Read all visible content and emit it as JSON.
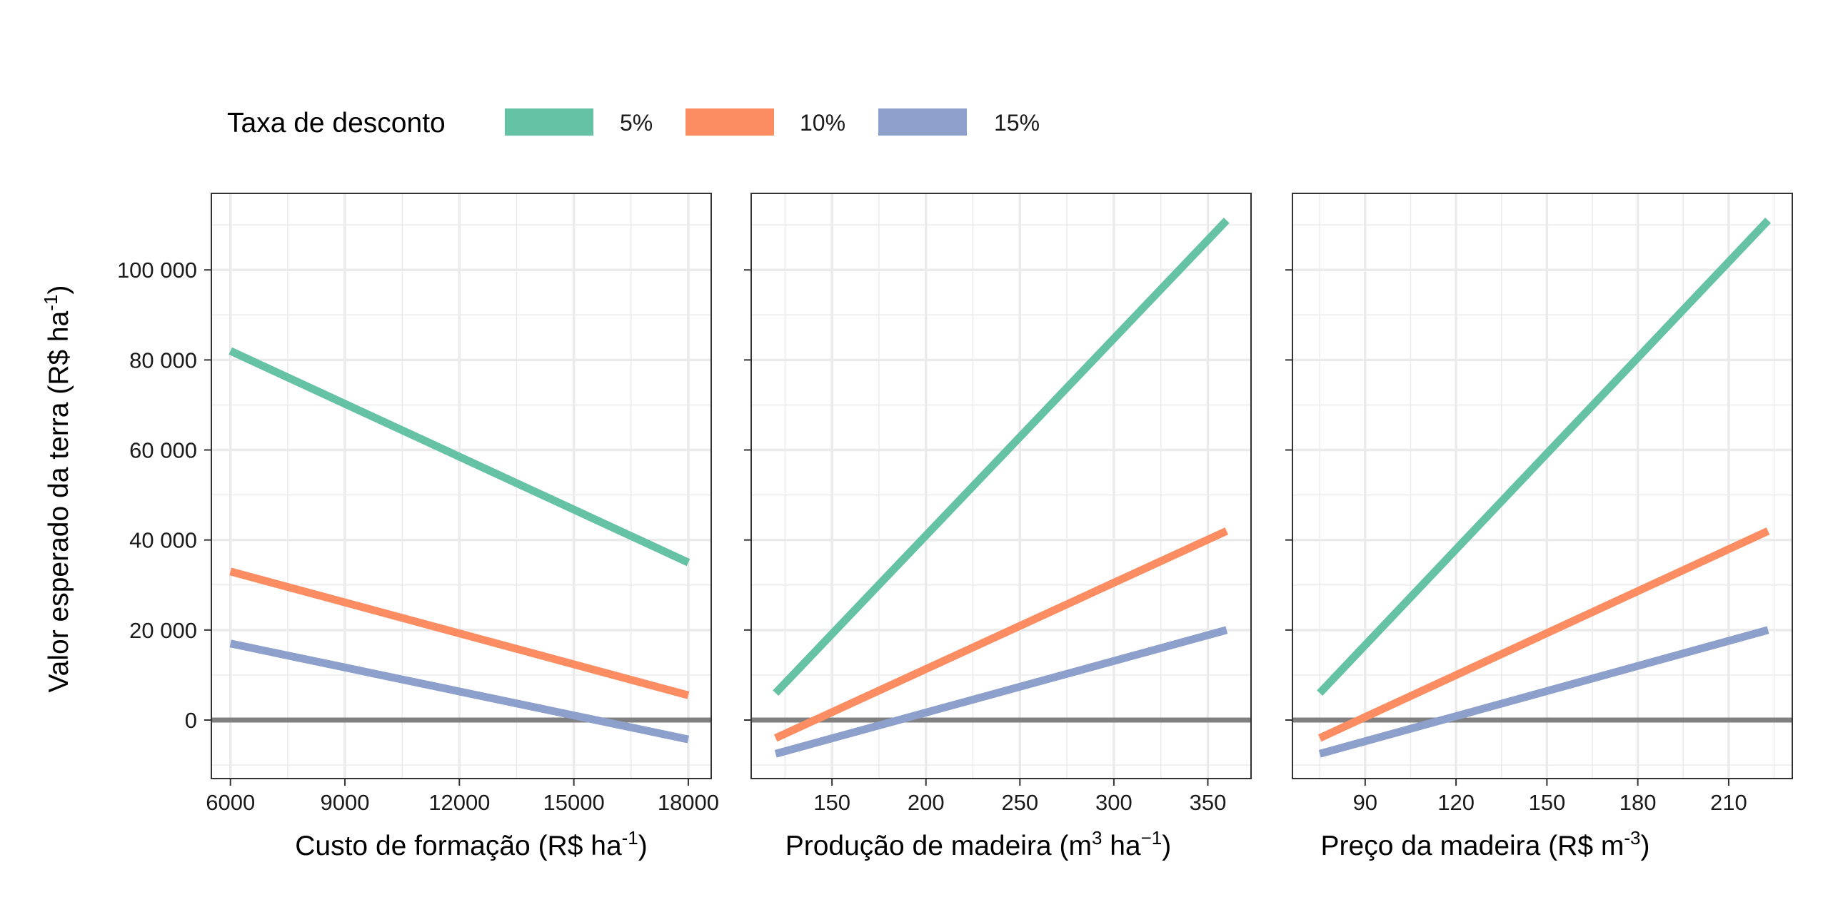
{
  "legend": {
    "title": "Taxa de desconto",
    "position": "top-left",
    "entries": [
      {
        "label": "5%",
        "color": "#66c2a5"
      },
      {
        "label": "10%",
        "color": "#fc8d62"
      },
      {
        "label": "15%",
        "color": "#8da0cb"
      }
    ]
  },
  "ylabel_main": "Valor esperado da terra (R$ ha",
  "ylabel_sup": "-1",
  "ylabel_close": ")",
  "colors": {
    "s5": "#66c2a5",
    "s10": "#fc8d62",
    "s15": "#8da0cb",
    "zero_line": "#808080",
    "grid": "#ebebeb",
    "panel_border": "#333333"
  },
  "chart_data": [
    {
      "type": "line",
      "xlabel_main": "Custo de formação (R$ ha",
      "xlabel_sup": "-1",
      "xlabel_close": ")",
      "xlim": [
        5500,
        18600
      ],
      "ylim": [
        -13000,
        117000
      ],
      "xticks": [
        6000,
        9000,
        12000,
        15000,
        18000
      ],
      "xtick_labels": [
        "6000",
        "9000",
        "12000",
        "15000",
        "18000"
      ],
      "yticks": [
        0,
        20000,
        40000,
        60000,
        80000,
        100000
      ],
      "ytick_labels": [
        "0",
        "20 000",
        "40 000",
        "60 000",
        "80 000",
        "100 000"
      ],
      "x": [
        6000,
        18000
      ],
      "series": [
        {
          "name": "5%",
          "values": [
            82000,
            35000
          ]
        },
        {
          "name": "10%",
          "values": [
            33000,
            5500
          ]
        },
        {
          "name": "15%",
          "values": [
            17000,
            -4300
          ]
        }
      ],
      "zero_line": 0,
      "grid": true
    },
    {
      "type": "line",
      "xlabel_main": "Produção de madeira (m",
      "xlabel_sup": "3",
      "xlabel_mid": " ha",
      "xlabel_sup2": "−1",
      "xlabel_close": ")",
      "xlim": [
        107,
        373
      ],
      "ylim": [
        -13000,
        117000
      ],
      "xticks": [
        150,
        200,
        250,
        300,
        350
      ],
      "xtick_labels": [
        "150",
        "200",
        "250",
        "300",
        "350"
      ],
      "x": [
        120,
        360
      ],
      "series": [
        {
          "name": "5%",
          "values": [
            6000,
            111000
          ]
        },
        {
          "name": "10%",
          "values": [
            -4000,
            42000
          ]
        },
        {
          "name": "15%",
          "values": [
            -7500,
            20000
          ]
        }
      ],
      "zero_line": 0,
      "grid": true
    },
    {
      "type": "line",
      "xlabel_main": "Preço da madeira (R$ m",
      "xlabel_sup": "-3",
      "xlabel_close": ")",
      "xlim": [
        66,
        231
      ],
      "ylim": [
        -13000,
        117000
      ],
      "xticks": [
        90,
        120,
        150,
        180,
        210
      ],
      "xtick_labels": [
        "90",
        "120",
        "150",
        "180",
        "210"
      ],
      "x": [
        75,
        223
      ],
      "series": [
        {
          "name": "5%",
          "values": [
            6000,
            111000
          ]
        },
        {
          "name": "10%",
          "values": [
            -4000,
            42000
          ]
        },
        {
          "name": "15%",
          "values": [
            -7500,
            20000
          ]
        }
      ],
      "zero_line": 0,
      "grid": true
    }
  ]
}
